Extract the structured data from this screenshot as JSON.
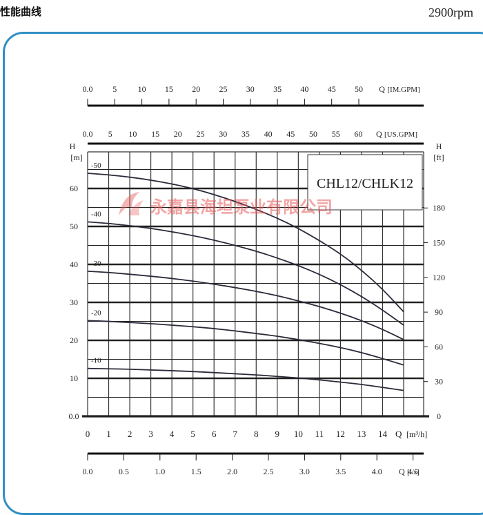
{
  "header": {
    "title": "性能曲线",
    "speed": "2900rpm"
  },
  "watermark": "永嘉县海坦泵业有限公司",
  "colors": {
    "frame": "#2f8fc4",
    "watermark": "#e75a5a",
    "ink": "#222222"
  },
  "chart_data": {
    "type": "line",
    "title": "CHL12/CHLK12",
    "x": [
      0,
      1,
      2,
      3,
      4,
      5,
      6,
      7,
      8,
      9,
      10,
      11,
      12,
      13,
      14,
      15
    ],
    "xlim": [
      0,
      15.8
    ],
    "ylim": [
      0,
      65
    ],
    "left_axis": {
      "label_top": "H",
      "label_unit": "[m]",
      "ticks": [
        {
          "v": 0,
          "label": "0.0"
        },
        {
          "v": 10,
          "label": "10"
        },
        {
          "v": 20,
          "label": "20"
        },
        {
          "v": 30,
          "label": "30"
        },
        {
          "v": 40,
          "label": "40"
        },
        {
          "v": 50,
          "label": "50"
        },
        {
          "v": 60,
          "label": "60"
        }
      ]
    },
    "right_axis": {
      "label_top": "H",
      "label_unit": "[ft]",
      "ticks": [
        {
          "v": 0,
          "label": "0"
        },
        {
          "v": 30,
          "label": "30"
        },
        {
          "v": 60,
          "label": "60"
        },
        {
          "v": 90,
          "label": "90"
        },
        {
          "v": 120,
          "label": "120"
        },
        {
          "v": 150,
          "label": "150"
        },
        {
          "v": 180,
          "label": "180"
        }
      ]
    },
    "bottom_axis": {
      "ticks": [
        "0",
        "1",
        "2",
        "3",
        "4",
        "5",
        "6",
        "7",
        "8",
        "9",
        "10",
        "11",
        "12",
        "13",
        "14"
      ],
      "q": "Q",
      "unit": "[m³/h]"
    },
    "us_gpm_axis": {
      "ticks": [
        "0.0",
        "5",
        "10",
        "15",
        "20",
        "25",
        "30",
        "35",
        "40",
        "45",
        "50",
        "55",
        "60"
      ],
      "q": "Q",
      "unit": "[US.GPM]"
    },
    "im_gpm_axis": {
      "ticks": [
        "0.0",
        "5",
        "10",
        "15",
        "20",
        "25",
        "30",
        "35",
        "40",
        "45",
        "50"
      ],
      "q": "Q",
      "unit": "[IM.GPM]"
    },
    "ls_axis": {
      "ticks": [
        "0.0",
        "0.5",
        "1.0",
        "1.5",
        "2.0",
        "2.5",
        "3.0",
        "3.5",
        "4.0",
        "4.5"
      ],
      "q": "Q",
      "unit": "[l/s]"
    },
    "series": [
      {
        "name": "-50",
        "values": [
          64,
          63.6,
          63.0,
          62.2,
          61.2,
          60.0,
          58.4,
          56.6,
          54.5,
          52.2,
          49.5,
          46.3,
          42.8,
          38.5,
          33.5,
          27.5
        ]
      },
      {
        "name": "-40",
        "values": [
          51.2,
          50.8,
          50.2,
          49.5,
          48.6,
          47.6,
          46.4,
          45.0,
          43.5,
          41.7,
          39.7,
          37.4,
          34.7,
          31.6,
          28.0,
          24.0
        ]
      },
      {
        "name": "-30",
        "values": [
          38.2,
          37.9,
          37.4,
          36.9,
          36.3,
          35.6,
          34.8,
          33.9,
          32.9,
          31.8,
          30.4,
          28.9,
          27.2,
          25.2,
          22.9,
          20.2
        ]
      },
      {
        "name": "-20",
        "values": [
          25.2,
          25.0,
          24.7,
          24.4,
          24.0,
          23.6,
          23.1,
          22.5,
          21.8,
          21.1,
          20.2,
          19.2,
          18.1,
          16.8,
          15.2,
          13.5
        ]
      },
      {
        "name": "-10",
        "values": [
          12.6,
          12.5,
          12.4,
          12.2,
          12.0,
          11.8,
          11.5,
          11.2,
          10.9,
          10.5,
          10.1,
          9.6,
          9.0,
          8.4,
          7.6,
          6.8
        ]
      }
    ]
  }
}
